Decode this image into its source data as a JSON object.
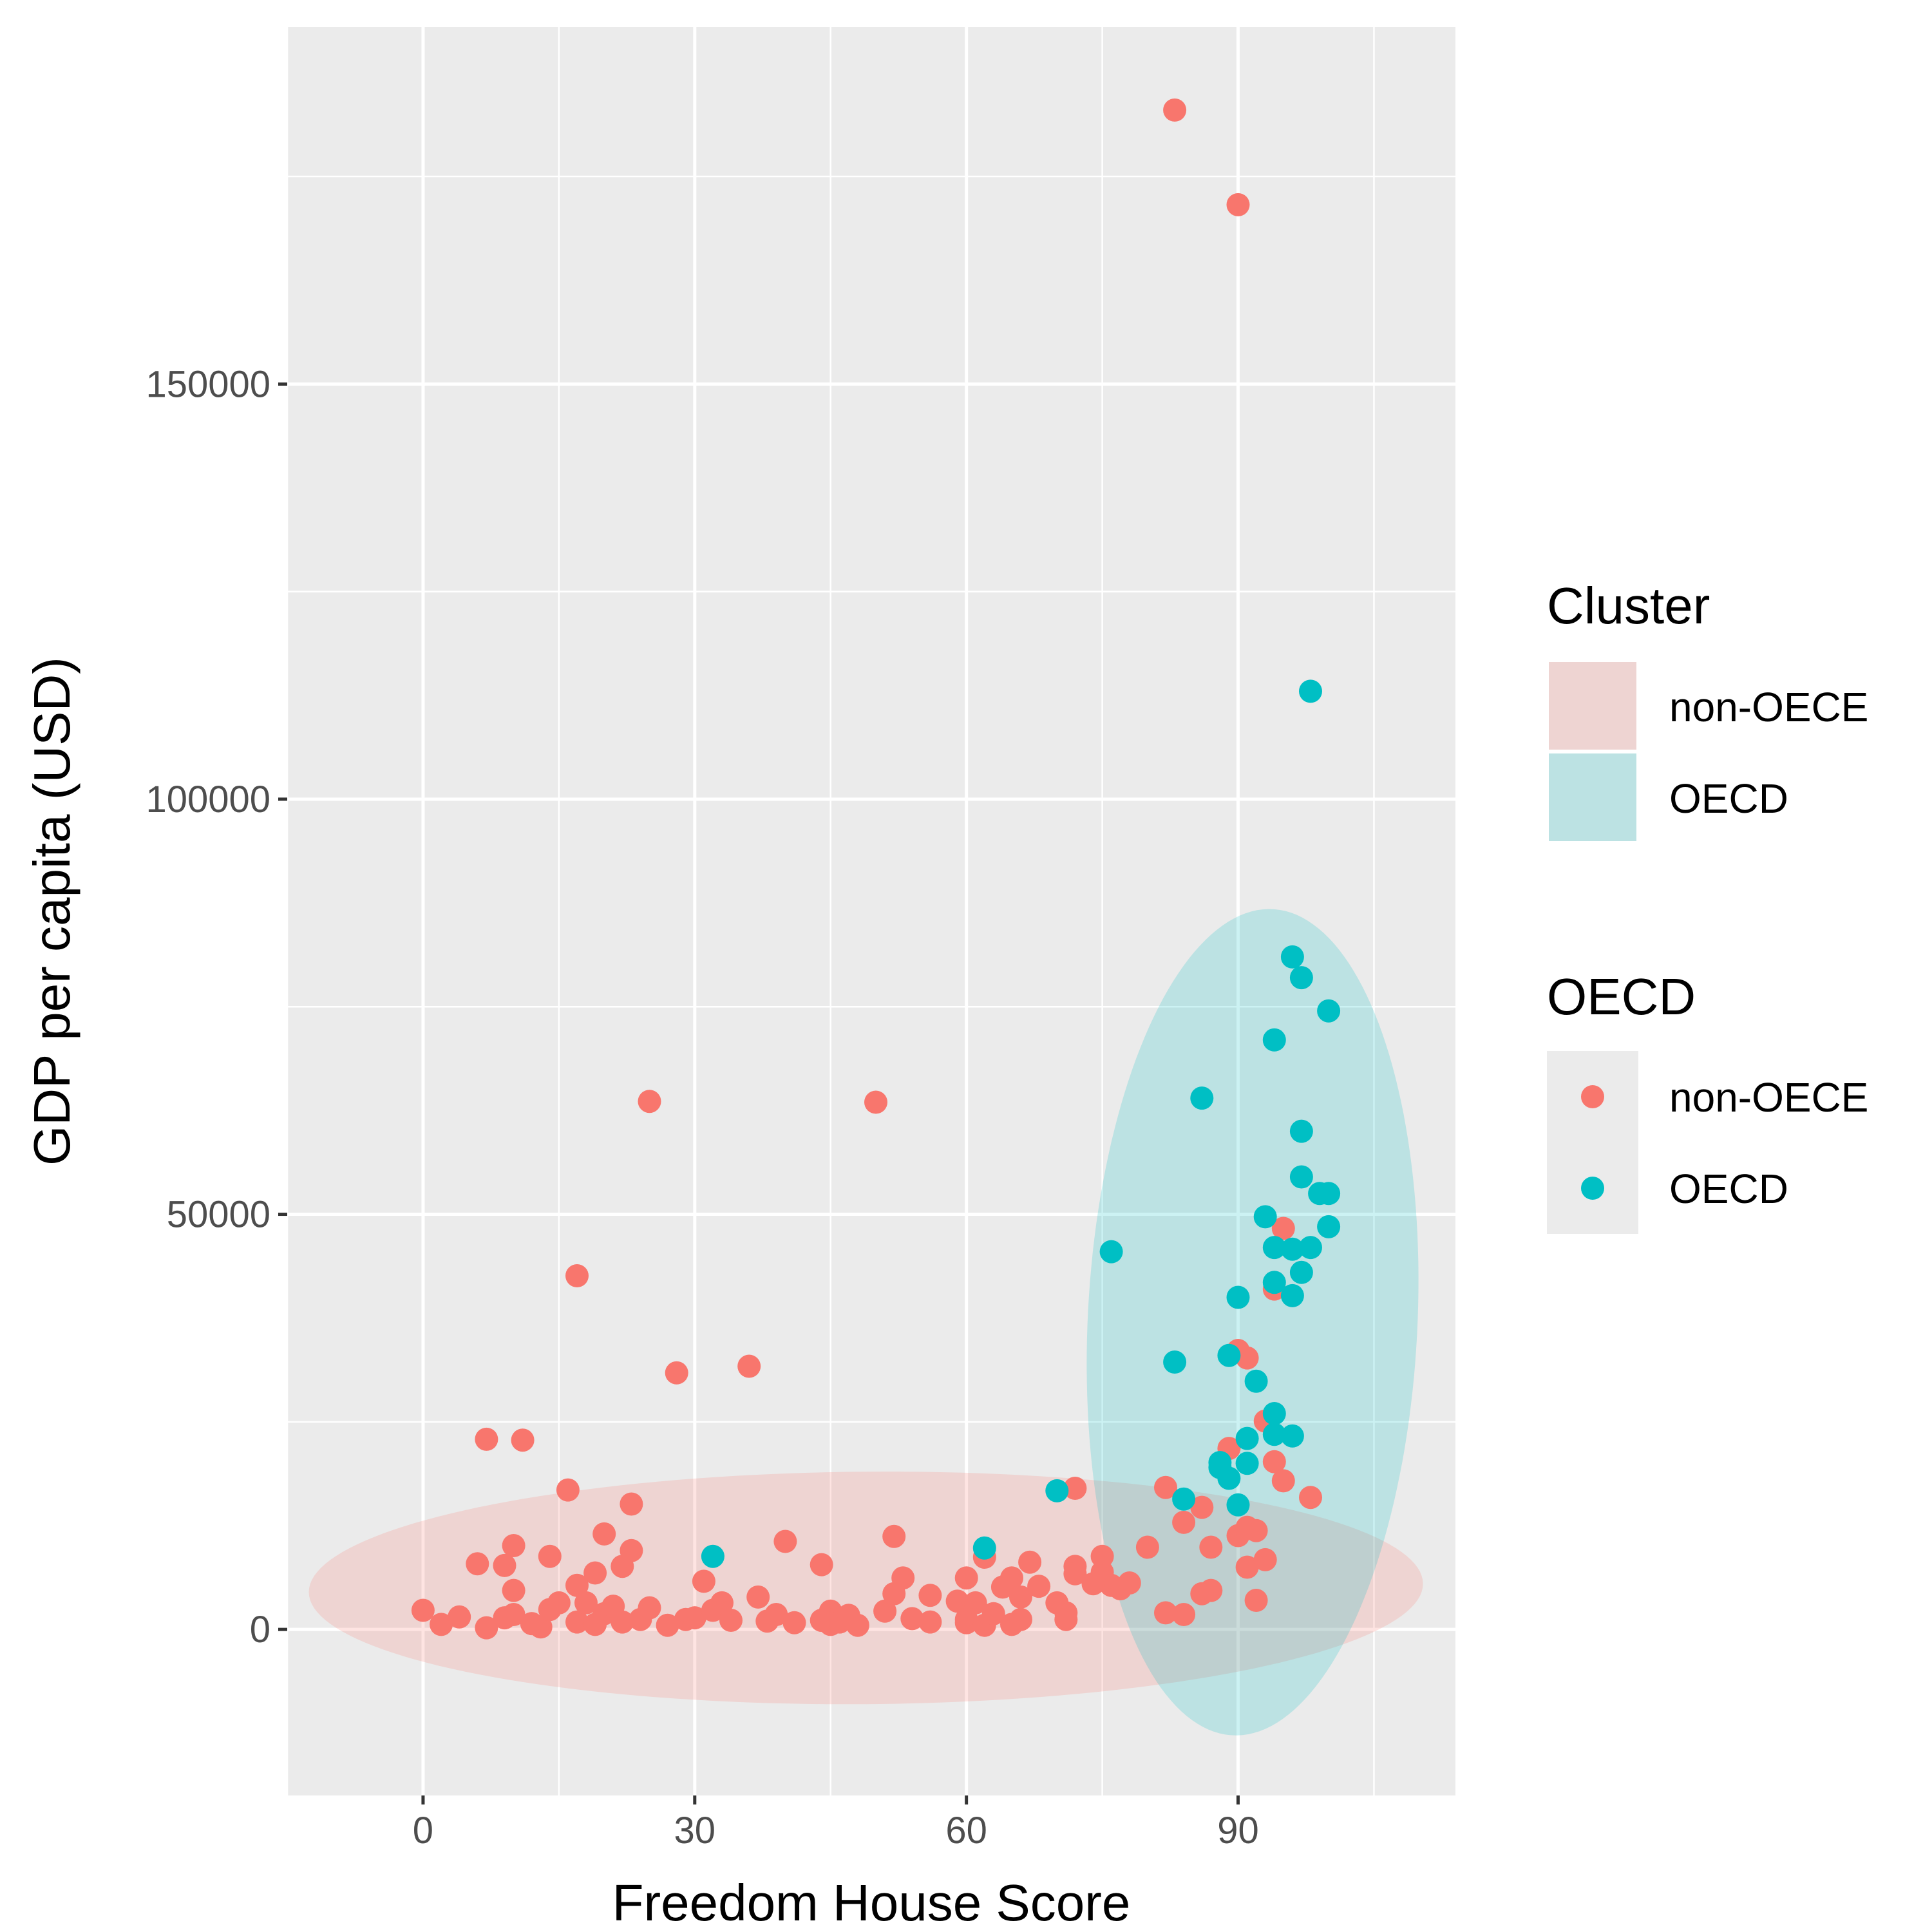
{
  "chart_data": {
    "type": "scatter",
    "xlabel": "Freedom House Score",
    "ylabel": "GDP per capita (USD)",
    "xlim": [
      -15,
      114
    ],
    "ylim": [
      -20000,
      193000
    ],
    "x_ticks": [
      0,
      30,
      60,
      90
    ],
    "y_ticks": [
      0,
      50000,
      100000,
      150000
    ],
    "x_tick_labels": [
      "0",
      "30",
      "60",
      "90"
    ],
    "y_tick_labels": [
      "0",
      "50000",
      "100000",
      "150000"
    ],
    "grid": true,
    "background": "#ebebeb",
    "legend_position": "right",
    "legends": [
      {
        "title": "Cluster",
        "kind": "fill",
        "entries": [
          {
            "label": "non-OECE",
            "color": "#f8766d"
          },
          {
            "label": "OECD",
            "color": "#00bfc4"
          }
        ]
      },
      {
        "title": "OECD",
        "kind": "point",
        "entries": [
          {
            "label": "non-OECE",
            "color": "#f8766d"
          },
          {
            "label": "OECD",
            "color": "#00bfc4"
          }
        ]
      }
    ],
    "ellipses": [
      {
        "name": "non-OECE",
        "color": "#f8766d",
        "alpha": 0.2,
        "cx": 48.9,
        "cy": 5000,
        "a": 61.6,
        "b": 14000,
        "angle_deg": 3.0
      },
      {
        "name": "OECD",
        "color": "#00bfc4",
        "alpha": 0.2,
        "cx": 91.6,
        "cy": 37000,
        "a": 38.1,
        "b": 18.5,
        "angle_deg": 79.0
      }
    ],
    "series": [
      {
        "name": "non-OECE",
        "color": "#f8766d",
        "points": [
          [
            83,
            183000
          ],
          [
            90,
            171600
          ],
          [
            25,
            63600
          ],
          [
            50,
            63500
          ],
          [
            17,
            42600
          ],
          [
            36,
            31700
          ],
          [
            28,
            30900
          ],
          [
            7,
            22900
          ],
          [
            11,
            22800
          ],
          [
            16,
            16800
          ],
          [
            23,
            15100
          ],
          [
            72,
            17000
          ],
          [
            20,
            11500
          ],
          [
            10,
            10100
          ],
          [
            23,
            9500
          ],
          [
            40,
            10600
          ],
          [
            52,
            11200
          ],
          [
            14,
            8800
          ],
          [
            6,
            7900
          ],
          [
            9,
            7700
          ],
          [
            19,
            6800
          ],
          [
            17,
            5300
          ],
          [
            22,
            7600
          ],
          [
            31,
            5800
          ],
          [
            44,
            7800
          ],
          [
            53,
            6200
          ],
          [
            60,
            6200
          ],
          [
            62,
            8700
          ],
          [
            67,
            8100
          ],
          [
            65,
            6200
          ],
          [
            72,
            7600
          ],
          [
            72,
            6700
          ],
          [
            75,
            8800
          ],
          [
            75,
            6900
          ],
          [
            76,
            5300
          ],
          [
            78,
            5600
          ],
          [
            80,
            9900
          ],
          [
            82,
            17100
          ],
          [
            84,
            12900
          ],
          [
            86,
            14700
          ],
          [
            87,
            9900
          ],
          [
            90,
            11300
          ],
          [
            89,
            21800
          ],
          [
            90,
            33600
          ],
          [
            91,
            32700
          ],
          [
            91,
            7500
          ],
          [
            93,
            25100
          ],
          [
            93,
            8400
          ],
          [
            94,
            20200
          ],
          [
            95,
            17900
          ],
          [
            95,
            48300
          ],
          [
            94,
            41000
          ],
          [
            98,
            15900
          ],
          [
            92,
            11900
          ],
          [
            91,
            12300
          ],
          [
            87,
            4700
          ],
          [
            86,
            4300
          ],
          [
            84,
            1800
          ],
          [
            82,
            2000
          ],
          [
            92,
            3500
          ],
          [
            0,
            2300
          ],
          [
            2,
            600
          ],
          [
            4,
            1500
          ],
          [
            7,
            200
          ],
          [
            9,
            1400
          ],
          [
            10,
            4700
          ],
          [
            10,
            1800
          ],
          [
            12,
            700
          ],
          [
            13,
            300
          ],
          [
            14,
            2400
          ],
          [
            17,
            900
          ],
          [
            18,
            3200
          ],
          [
            19,
            600
          ],
          [
            20,
            1900
          ],
          [
            21,
            2800
          ],
          [
            22,
            900
          ],
          [
            24,
            1200
          ],
          [
            25,
            2600
          ],
          [
            27,
            500
          ],
          [
            29,
            1200
          ],
          [
            30,
            1400
          ],
          [
            32,
            2300
          ],
          [
            33,
            3200
          ],
          [
            34,
            1100
          ],
          [
            37,
            3900
          ],
          [
            38,
            1000
          ],
          [
            39,
            1800
          ],
          [
            41,
            800
          ],
          [
            44,
            1100
          ],
          [
            45,
            2200
          ],
          [
            45,
            600
          ],
          [
            46,
            900
          ],
          [
            47,
            1700
          ],
          [
            48,
            500
          ],
          [
            51,
            2200
          ],
          [
            52,
            4300
          ],
          [
            54,
            1300
          ],
          [
            56,
            900
          ],
          [
            56,
            4100
          ],
          [
            59,
            3400
          ],
          [
            60,
            1200
          ],
          [
            60,
            800
          ],
          [
            61,
            3200
          ],
          [
            62,
            500
          ],
          [
            63,
            1900
          ],
          [
            64,
            5100
          ],
          [
            65,
            600
          ],
          [
            66,
            1200
          ],
          [
            66,
            3900
          ],
          [
            68,
            5200
          ],
          [
            70,
            3200
          ],
          [
            71,
            1200
          ],
          [
            71,
            2000
          ],
          [
            74,
            5500
          ],
          [
            77,
            4900
          ],
          [
            15,
            3200
          ]
        ]
      },
      {
        "name": "OECD",
        "color": "#00bfc4",
        "points": [
          [
            98,
            113000
          ],
          [
            96,
            81000
          ],
          [
            97,
            78500
          ],
          [
            100,
            74500
          ],
          [
            94,
            71000
          ],
          [
            86,
            64000
          ],
          [
            97,
            60000
          ],
          [
            97,
            54500
          ],
          [
            99,
            52500
          ],
          [
            100,
            52500
          ],
          [
            93,
            49700
          ],
          [
            100,
            48500
          ],
          [
            94,
            46000
          ],
          [
            96,
            45800
          ],
          [
            98,
            46000
          ],
          [
            76,
            45500
          ],
          [
            97,
            43000
          ],
          [
            94,
            41800
          ],
          [
            96,
            40200
          ],
          [
            90,
            40000
          ],
          [
            89,
            33000
          ],
          [
            83,
            32200
          ],
          [
            92,
            29900
          ],
          [
            94,
            26000
          ],
          [
            96,
            23300
          ],
          [
            91,
            23000
          ],
          [
            94,
            23500
          ],
          [
            88,
            20100
          ],
          [
            91,
            20000
          ],
          [
            88,
            19500
          ],
          [
            89,
            18200
          ],
          [
            70,
            16700
          ],
          [
            84,
            15700
          ],
          [
            90,
            15000
          ],
          [
            62,
            9800
          ],
          [
            32,
            8800
          ]
        ]
      }
    ]
  }
}
